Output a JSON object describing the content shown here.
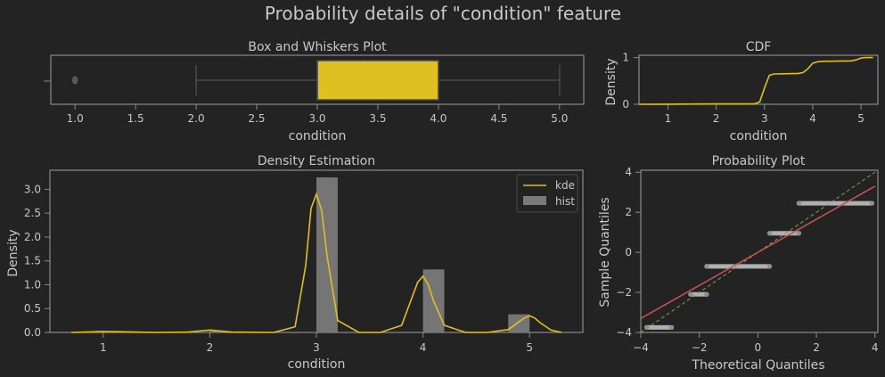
{
  "suptitle": "Probability details of \"condition\" feature",
  "colors": {
    "background": "#232323",
    "axes_edge": "#8a8a8a",
    "text": "#c8c8c8",
    "gold": "#e0c020",
    "hist_gray": "#7a7a7a",
    "qq_points": "#c0c0c0",
    "fit_line": "#c85050",
    "ref_line": "#8aa040"
  },
  "chart_data": [
    {
      "id": "box",
      "type": "box",
      "title": "Box and Whiskers Plot",
      "xlabel": "condition",
      "ylabel": "",
      "xlim": [
        0.8,
        5.2
      ],
      "xticks": [
        "1.0",
        "1.5",
        "2.0",
        "2.5",
        "3.0",
        "3.5",
        "4.0",
        "4.5",
        "5.0"
      ],
      "whisker_low": 2.0,
      "q1": 3.0,
      "median": 3.0,
      "q3": 4.0,
      "whisker_high": 5.0,
      "outliers": [
        1.0
      ]
    },
    {
      "id": "cdf",
      "type": "line",
      "title": "CDF",
      "xlabel": "condition",
      "ylabel": "Density",
      "xlim": [
        0.4,
        5.35
      ],
      "ylim": [
        0,
        1.05
      ],
      "xticks": [
        "1",
        "2",
        "3",
        "4",
        "5"
      ],
      "yticks": [
        "0",
        "1"
      ],
      "x": [
        0.4,
        1.0,
        2.0,
        2.8,
        2.9,
        3.0,
        3.1,
        3.2,
        3.7,
        3.8,
        3.9,
        4.0,
        4.1,
        4.2,
        4.8,
        4.9,
        5.0,
        5.1,
        5.25
      ],
      "y": [
        0.0,
        0.002,
        0.01,
        0.012,
        0.05,
        0.35,
        0.62,
        0.65,
        0.66,
        0.68,
        0.76,
        0.88,
        0.91,
        0.92,
        0.93,
        0.95,
        0.99,
        1.0,
        1.0
      ]
    },
    {
      "id": "density",
      "type": "bar+line",
      "title": "Density Estimation",
      "xlabel": "condition",
      "ylabel": "Density",
      "xlim": [
        0.5,
        5.5
      ],
      "ylim": [
        0,
        3.4
      ],
      "xticks": [
        "1",
        "2",
        "3",
        "4",
        "5"
      ],
      "yticks": [
        "0.0",
        "0.5",
        "1.0",
        "1.5",
        "2.0",
        "2.5",
        "3.0"
      ],
      "legend": [
        "kde",
        "hist"
      ],
      "legend_position": "top-right",
      "hist": {
        "bins": [
          [
            1.0,
            1.2,
            0.01
          ],
          [
            2.0,
            2.2,
            0.03
          ],
          [
            3.0,
            3.2,
            3.25
          ],
          [
            4.0,
            4.2,
            1.32
          ],
          [
            4.8,
            5.0,
            0.38
          ]
        ]
      },
      "kde": {
        "x": [
          0.7,
          1.0,
          1.5,
          1.8,
          2.0,
          2.2,
          2.6,
          2.8,
          2.9,
          2.95,
          3.0,
          3.05,
          3.1,
          3.2,
          3.4,
          3.6,
          3.8,
          3.9,
          3.95,
          4.0,
          4.05,
          4.1,
          4.2,
          4.4,
          4.6,
          4.8,
          4.9,
          4.95,
          5.0,
          5.05,
          5.1,
          5.2,
          5.3
        ],
        "y": [
          0.0,
          0.02,
          0.0,
          0.01,
          0.05,
          0.01,
          0.0,
          0.12,
          1.4,
          2.6,
          2.9,
          2.55,
          1.6,
          0.25,
          0.0,
          0.0,
          0.15,
          0.75,
          1.05,
          1.18,
          1.0,
          0.65,
          0.15,
          0.0,
          0.0,
          0.06,
          0.22,
          0.3,
          0.35,
          0.3,
          0.2,
          0.05,
          0.0
        ]
      }
    },
    {
      "id": "prob",
      "type": "scatter",
      "title": "Probability Plot",
      "xlabel": "Theoretical Quantiles",
      "ylabel": "Sample Quantiles",
      "xlim": [
        -4,
        4.1
      ],
      "ylim": [
        -4,
        4.1
      ],
      "xticks": [
        "−4",
        "−2",
        "0",
        "2",
        "4"
      ],
      "yticks": [
        "−4",
        "−2",
        "0",
        "2",
        "4"
      ],
      "steps": [
        {
          "x0": -3.8,
          "x1": -2.95,
          "y": -3.75
        },
        {
          "x0": -2.3,
          "x1": -1.75,
          "y": -2.1
        },
        {
          "x0": -1.75,
          "x1": 0.4,
          "y": -0.7
        },
        {
          "x0": 0.4,
          "x1": 1.4,
          "y": 0.95
        },
        {
          "x0": 1.4,
          "x1": 3.9,
          "y": 2.45
        }
      ],
      "fit_line": {
        "x": [
          -4,
          4
        ],
        "y": [
          -3.3,
          3.3
        ]
      },
      "ref_line": {
        "x": [
          -4,
          4.1
        ],
        "y": [
          -4,
          4.1
        ]
      }
    }
  ]
}
